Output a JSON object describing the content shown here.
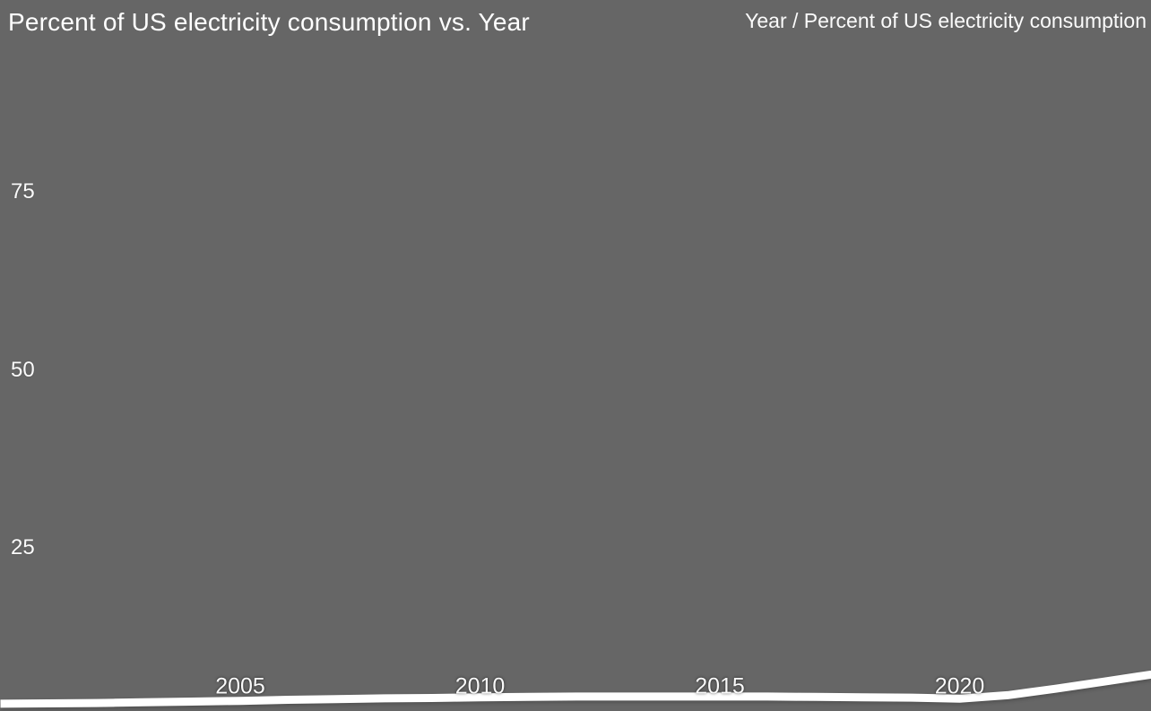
{
  "colors": {
    "background": "#666666",
    "text": "#ffffff",
    "line": "#ffffff"
  },
  "header": {
    "title": "Percent of US electricity consumption vs. Year",
    "axis_hint": "Year / Percent of US electricity consumption"
  },
  "chart_data": {
    "type": "line",
    "title": "Percent of US electricity consumption vs. Year",
    "xlabel": "Year",
    "ylabel": "Percent of US electricity consumption",
    "xlim": [
      2000,
      2024
    ],
    "ylim": [
      0,
      100
    ],
    "grid": false,
    "legend": false,
    "x_ticks": [
      "2005",
      "2010",
      "2015",
      "2020"
    ],
    "x_tick_values": [
      2005,
      2010,
      2015,
      2020
    ],
    "y_ticks": [
      "25",
      "50",
      "75"
    ],
    "y_tick_values": [
      25,
      50,
      75
    ],
    "line_color": "#ffffff",
    "series": [
      {
        "name": "Percent of US electricity consumption",
        "x": [
          2000,
          2001,
          2002,
          2003,
          2004,
          2005,
          2006,
          2007,
          2008,
          2009,
          2010,
          2011,
          2012,
          2013,
          2014,
          2015,
          2016,
          2017,
          2018,
          2019,
          2020,
          2021,
          2022,
          2023,
          2024
        ],
        "values": [
          3.1,
          3.15,
          3.2,
          3.3,
          3.4,
          3.5,
          3.65,
          3.75,
          3.85,
          3.9,
          4.0,
          4.05,
          4.1,
          4.1,
          4.1,
          4.1,
          4.1,
          4.05,
          4.0,
          3.95,
          3.8,
          4.3,
          5.2,
          6.2,
          7.2
        ]
      }
    ]
  }
}
